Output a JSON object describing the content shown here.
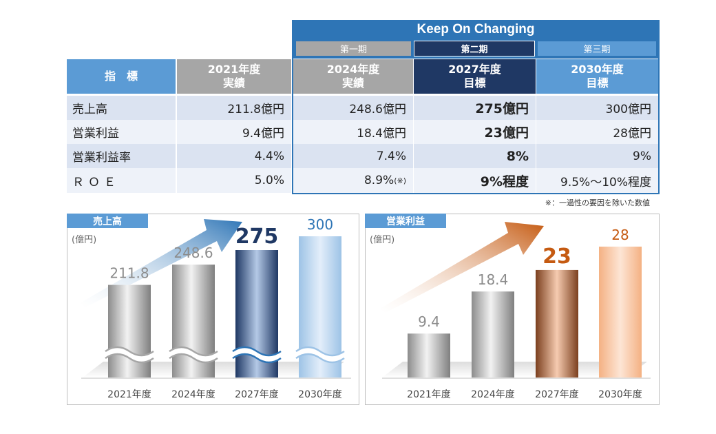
{
  "header": {
    "banner": "Keep On Changing",
    "phases": [
      "第一期",
      "第二期",
      "第三期"
    ]
  },
  "table": {
    "columns": [
      {
        "line1": "指　標",
        "line2": ""
      },
      {
        "line1": "2021年度",
        "line2": "実績"
      },
      {
        "line1": "2024年度",
        "line2": "実績"
      },
      {
        "line1": "2027年度",
        "line2": "目標"
      },
      {
        "line1": "2030年度",
        "line2": "目標"
      }
    ],
    "rows": [
      {
        "label": "売上高",
        "v2021": "211.8億円",
        "v2024": "248.6億円",
        "v2024_note": "",
        "v2027": "275億円",
        "v2030": "300億円"
      },
      {
        "label": "営業利益",
        "v2021": "9.4億円",
        "v2024": "18.4億円",
        "v2024_note": "",
        "v2027": "23億円",
        "v2030": "28億円"
      },
      {
        "label": "営業利益率",
        "v2021": "4.4%",
        "v2024": "7.4%",
        "v2024_note": "",
        "v2027": "8%",
        "v2030": "9%"
      },
      {
        "label": "ＲＯＥ",
        "v2021": "5.0%",
        "v2024": "8.9%",
        "v2024_note": "(※)",
        "v2027": "9%程度",
        "v2030": "9.5%～10%程度"
      }
    ],
    "footnote": "※：一過性の要因を除いた数値"
  },
  "colors": {
    "blue_dark": "#1f3864",
    "blue_mid": "#2e75b6",
    "blue_light": "#5b9bd5",
    "gray_header": "#a6a6a6",
    "row_odd": "#dbe3f1",
    "row_even": "#eef2f9",
    "orange": "#c55a11"
  },
  "chart_data": [
    {
      "type": "bar",
      "title": "売上高",
      "ylabel": "(億円)",
      "categories": [
        "2021年度",
        "2024年度",
        "2027年度",
        "2030年度"
      ],
      "values": [
        211.8,
        248.6,
        275,
        300
      ],
      "labels": [
        "211.8",
        "248.6",
        "275",
        "300"
      ],
      "highlight_index": 2,
      "axis_break": true
    },
    {
      "type": "bar",
      "title": "営業利益",
      "ylabel": "(億円)",
      "categories": [
        "2021年度",
        "2024年度",
        "2027年度",
        "2030年度"
      ],
      "values": [
        9.4,
        18.4,
        23,
        28
      ],
      "labels": [
        "9.4",
        "18.4",
        "23",
        "28"
      ],
      "highlight_index": 2,
      "axis_break": false
    }
  ]
}
